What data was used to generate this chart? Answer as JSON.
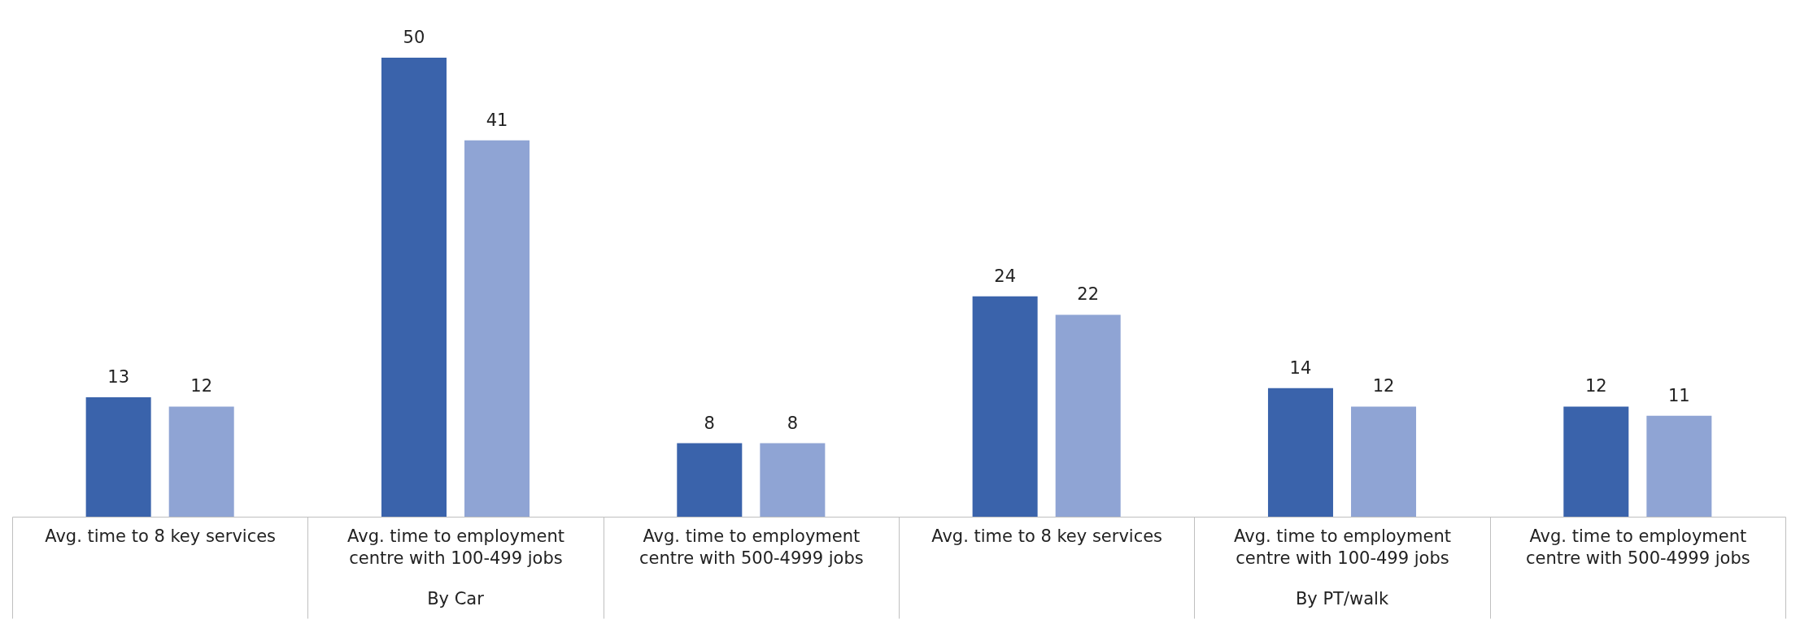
{
  "chart_data": {
    "type": "bar",
    "categories": [
      "Avg. time to 8 key services",
      "Avg. time to employment centre with 100-499 jobs",
      "Avg. time to employment centre with 500-4999 jobs",
      "Avg. time to 8 key services",
      "Avg. time to employment centre with 100-499 jobs",
      "Avg. time to employment centre with 500-4999 jobs"
    ],
    "series": [
      {
        "color": "#3a63ab",
        "values": [
          13,
          50,
          8,
          24,
          14,
          12
        ]
      },
      {
        "color": "#8fa4d4",
        "values": [
          12,
          41,
          8,
          22,
          12,
          11
        ]
      }
    ],
    "data_labels": true,
    "grid": false,
    "annotations": [
      "By Car",
      "By PT/walk"
    ]
  }
}
